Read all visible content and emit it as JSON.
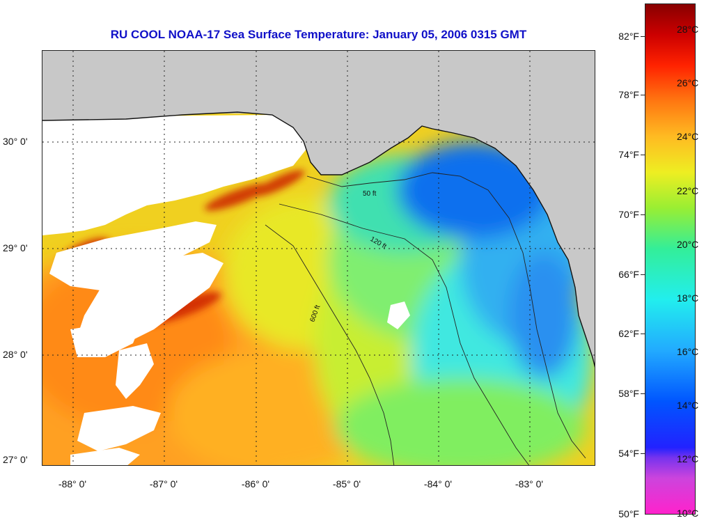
{
  "title": "RU COOL  NOAA-17  Sea Surface Temperature:  January 05, 2006 0315 GMT",
  "latitude_labels": [
    "30° 0'",
    "29° 0'",
    "28° 0'",
    "27° 0'"
  ],
  "longitude_labels": [
    "-88° 0'",
    "-87° 0'",
    "-86° 0'",
    "-85° 0'",
    "-84° 0'",
    "-83° 0'"
  ],
  "contour_labels": [
    "50 ft",
    "120 ft",
    "600 ft"
  ],
  "colorbar": {
    "fahrenheit_labels": [
      "82°F",
      "78°F",
      "74°F",
      "70°F",
      "66°F",
      "62°F",
      "58°F",
      "54°F",
      "50°F"
    ],
    "celsius_labels": [
      "28°C",
      "26°C",
      "24°C",
      "22°C",
      "20°C",
      "18°C",
      "16°C",
      "14°C",
      "12°C",
      "10°C"
    ]
  },
  "colors": {
    "title": "#1010c8",
    "land": "#c8c8c8",
    "cloud": "#ffffff"
  }
}
